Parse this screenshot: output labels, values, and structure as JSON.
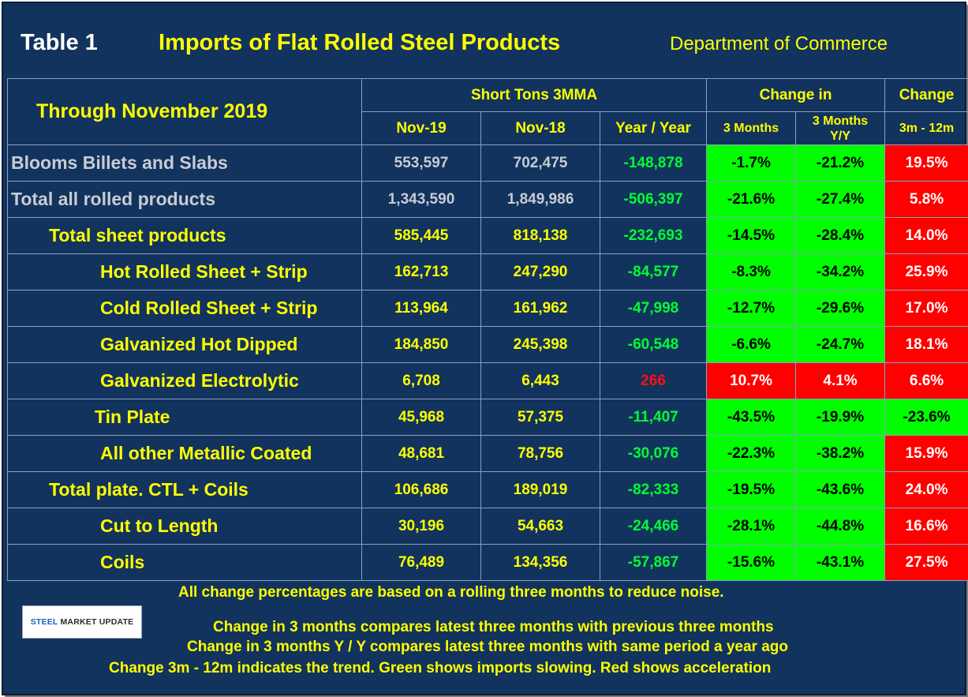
{
  "title": {
    "label": "Table 1",
    "main": "Imports of Flat Rolled Steel Products",
    "source": "Department of Commerce"
  },
  "headers": {
    "through": "Through November 2019",
    "short_tons": "Short Tons 3MMA",
    "change_in": "Change in",
    "change": "Change",
    "nov19": "Nov-19",
    "nov18": "Nov-18",
    "yoy": "Year / Year",
    "m3": "3 Months",
    "m3yy_line1": "3 Months",
    "m3yy_line2": "Y/Y",
    "trend": "3m - 12m"
  },
  "rows": [
    {
      "label": "Blooms Billets and Slabs",
      "nov19": "553,597",
      "nov18": "702,475",
      "yoy": "-148,878",
      "m3": "-1.7%",
      "m3yy": "-21.2%",
      "trend": "19.5%"
    },
    {
      "label": "Total all rolled products",
      "nov19": "1,343,590",
      "nov18": "1,849,986",
      "yoy": "-506,397",
      "m3": "-21.6%",
      "m3yy": "-27.4%",
      "trend": "5.8%"
    },
    {
      "label": "Total sheet products",
      "nov19": "585,445",
      "nov18": "818,138",
      "yoy": "-232,693",
      "m3": "-14.5%",
      "m3yy": "-28.4%",
      "trend": "14.0%"
    },
    {
      "label": "Hot Rolled Sheet + Strip",
      "nov19": "162,713",
      "nov18": "247,290",
      "yoy": "-84,577",
      "m3": "-8.3%",
      "m3yy": "-34.2%",
      "trend": "25.9%"
    },
    {
      "label": "Cold Rolled Sheet + Strip",
      "nov19": "113,964",
      "nov18": "161,962",
      "yoy": "-47,998",
      "m3": "-12.7%",
      "m3yy": "-29.6%",
      "trend": "17.0%"
    },
    {
      "label": "Galvanized Hot Dipped",
      "nov19": "184,850",
      "nov18": "245,398",
      "yoy": "-60,548",
      "m3": "-6.6%",
      "m3yy": "-24.7%",
      "trend": "18.1%"
    },
    {
      "label": "Galvanized Electrolytic",
      "nov19": "6,708",
      "nov18": "6,443",
      "yoy": "266",
      "m3": "10.7%",
      "m3yy": "4.1%",
      "trend": "6.6%"
    },
    {
      "label": "Tin Plate",
      "nov19": "45,968",
      "nov18": "57,375",
      "yoy": "-11,407",
      "m3": "-43.5%",
      "m3yy": "-19.9%",
      "trend": "-23.6%"
    },
    {
      "label": "All other Metallic Coated",
      "nov19": "48,681",
      "nov18": "78,756",
      "yoy": "-30,076",
      "m3": "-22.3%",
      "m3yy": "-38.2%",
      "trend": "15.9%"
    },
    {
      "label": "Total plate. CTL + Coils",
      "nov19": "106,686",
      "nov18": "189,019",
      "yoy": "-82,333",
      "m3": "-19.5%",
      "m3yy": "-43.6%",
      "trend": "24.0%"
    },
    {
      "label": "Cut to Length",
      "nov19": "30,196",
      "nov18": "54,663",
      "yoy": "-24,466",
      "m3": "-28.1%",
      "m3yy": "-44.8%",
      "trend": "16.6%"
    },
    {
      "label": "Coils",
      "nov19": "76,489",
      "nov18": "134,356",
      "yoy": "-57,867",
      "m3": "-15.6%",
      "m3yy": "-43.1%",
      "trend": "27.5%"
    }
  ],
  "colors": {
    "background": "#12335d",
    "header_text": "#ffff00",
    "green_cell": "#00ff00",
    "red_cell": "#ff0000",
    "yoy_green": "#00ff33",
    "yoy_red": "#ff1010"
  },
  "notes": {
    "line1": "All change percentages are based on a rolling three months to reduce noise.",
    "line2": "Change in 3 months compares latest three months with previous three months",
    "line3": "Change in 3 months  Y / Y compares latest three months with same period a year ago",
    "line4": "Change 3m - 12m indicates the trend. Green shows imports slowing. Red shows acceleration"
  },
  "logo": {
    "word1": "STEEL",
    "word2": " MARKET UPDATE"
  }
}
